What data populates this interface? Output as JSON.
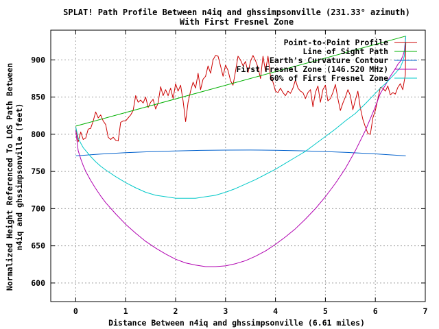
{
  "chart_data": {
    "type": "line",
    "title": "SPLAT! Path Profile Between n4iq and ghssimpsonville (231.33° azimuth)",
    "subtitle": "With First Fresnel Zone",
    "xlabel": "Distance Between n4iq and ghssimpsonville (6.61 miles)",
    "ylabel_line1": "Normalized Height Referenced To LOS Path Between",
    "ylabel_line2": "n4iq and ghssimpsonville (feet)",
    "xlim": [
      -0.5,
      7
    ],
    "ylim": [
      575,
      940
    ],
    "x_ticks": [
      0,
      1,
      2,
      3,
      4,
      5,
      6,
      7
    ],
    "y_ticks": [
      600,
      650,
      700,
      750,
      800,
      850,
      900
    ],
    "grid": true,
    "legend_position": "top-right",
    "series": [
      {
        "name": "Point-to-Point Profile",
        "color": "#cc0000",
        "x": [
          0,
          0.05,
          0.1,
          0.15,
          0.2,
          0.25,
          0.3,
          0.35,
          0.4,
          0.45,
          0.5,
          0.55,
          0.6,
          0.65,
          0.7,
          0.75,
          0.8,
          0.85,
          0.9,
          0.95,
          1.0,
          1.05,
          1.1,
          1.15,
          1.2,
          1.25,
          1.3,
          1.35,
          1.4,
          1.45,
          1.5,
          1.55,
          1.6,
          1.65,
          1.7,
          1.75,
          1.8,
          1.85,
          1.9,
          1.95,
          2.0,
          2.05,
          2.1,
          2.15,
          2.2,
          2.25,
          2.3,
          2.35,
          2.4,
          2.45,
          2.5,
          2.55,
          2.6,
          2.65,
          2.7,
          2.75,
          2.8,
          2.85,
          2.9,
          2.95,
          3.0,
          3.05,
          3.1,
          3.15,
          3.2,
          3.25,
          3.3,
          3.35,
          3.4,
          3.45,
          3.5,
          3.55,
          3.6,
          3.65,
          3.7,
          3.75,
          3.8,
          3.85,
          3.9,
          3.95,
          4.0,
          4.05,
          4.1,
          4.15,
          4.2,
          4.25,
          4.3,
          4.35,
          4.4,
          4.45,
          4.5,
          4.55,
          4.6,
          4.65,
          4.7,
          4.75,
          4.8,
          4.85,
          4.9,
          4.95,
          5.0,
          5.05,
          5.1,
          5.15,
          5.2,
          5.25,
          5.3,
          5.35,
          5.4,
          5.45,
          5.5,
          5.55,
          5.6,
          5.65,
          5.7,
          5.75,
          5.8,
          5.85,
          5.9,
          5.95,
          6.0,
          6.05,
          6.1,
          6.15,
          6.2,
          6.25,
          6.3,
          6.35,
          6.4,
          6.45,
          6.5,
          6.55,
          6.6,
          6.61
        ],
        "values": [
          810,
          790,
          803,
          793,
          795,
          807,
          808,
          818,
          830,
          822,
          826,
          818,
          813,
          796,
          793,
          796,
          792,
          791,
          816,
          818,
          818,
          822,
          826,
          832,
          852,
          843,
          846,
          842,
          850,
          836,
          843,
          847,
          834,
          842,
          864,
          852,
          860,
          852,
          862,
          848,
          868,
          858,
          866,
          845,
          817,
          843,
          858,
          870,
          862,
          882,
          860,
          874,
          878,
          892,
          882,
          900,
          906,
          905,
          892,
          878,
          893,
          886,
          872,
          866,
          885,
          905,
          900,
          892,
          898,
          883,
          898,
          906,
          899,
          890,
          875,
          905,
          885,
          905,
          878,
          870,
          858,
          856,
          862,
          856,
          852,
          858,
          855,
          862,
          873,
          862,
          858,
          856,
          848,
          856,
          860,
          837,
          856,
          865,
          843,
          860,
          866,
          845,
          848,
          856,
          867,
          848,
          832,
          842,
          850,
          860,
          852,
          833,
          846,
          858,
          835,
          820,
          810,
          801,
          800,
          822,
          832,
          847,
          863,
          862,
          858,
          865,
          853,
          856,
          854,
          863,
          868,
          860,
          880,
          924
        ]
      },
      {
        "name": "Line of Sight Path",
        "color": "#00b000",
        "x": [
          0,
          6.61
        ],
        "values": [
          811,
          932
        ]
      },
      {
        "name": "Earth's Curvature Contour",
        "color": "#0060cc",
        "x": [
          0,
          0.5,
          1.0,
          1.5,
          2.0,
          2.5,
          3.0,
          3.5,
          4.0,
          4.5,
          5.0,
          5.5,
          6.0,
          6.61
        ],
        "values": [
          771,
          773.4,
          775.2,
          776.6,
          777.6,
          778.3,
          778.7,
          778.8,
          778.5,
          777.8,
          776.8,
          775.4,
          773.6,
          771
        ]
      },
      {
        "name": "First Fresnel Zone (146.520 MHz)",
        "color": "#b000b0",
        "x": [
          0,
          0.05,
          0.1,
          0.15,
          0.2,
          0.3,
          0.4,
          0.5,
          0.6,
          0.8,
          1.0,
          1.2,
          1.4,
          1.6,
          1.8,
          2.0,
          2.2,
          2.4,
          2.6,
          2.8,
          3.0,
          3.2,
          3.4,
          3.6,
          3.8,
          4.0,
          4.2,
          4.4,
          4.6,
          4.8,
          5.0,
          5.2,
          5.4,
          5.6,
          5.8,
          6.0,
          6.1,
          6.2,
          6.3,
          6.4,
          6.45,
          6.5,
          6.55,
          6.58,
          6.61
        ],
        "values": [
          805,
          778,
          767,
          758,
          750,
          738,
          727,
          717,
          708,
          693,
          679,
          667,
          656,
          647,
          639,
          632,
          627,
          624,
          622,
          622,
          623,
          626,
          630,
          636,
          643,
          652,
          662,
          673,
          686,
          700,
          716,
          734,
          754,
          778,
          805,
          837,
          855,
          866,
          878,
          888,
          894,
          898,
          905,
          912,
          932
        ]
      },
      {
        "name": "60% of First Fresnel Zone",
        "color": "#00c8c8",
        "x": [
          0,
          0.05,
          0.1,
          0.15,
          0.2,
          0.3,
          0.4,
          0.5,
          0.6,
          0.8,
          1.0,
          1.2,
          1.4,
          1.6,
          1.8,
          2.0,
          2.2,
          2.4,
          2.6,
          2.8,
          3.0,
          3.2,
          3.4,
          3.6,
          3.8,
          4.0,
          4.2,
          4.4,
          4.6,
          4.8,
          5.0,
          5.2,
          5.4,
          5.6,
          5.8,
          6.0,
          6.1,
          6.2,
          6.3,
          6.4,
          6.45,
          6.5,
          6.55,
          6.58,
          6.61
        ],
        "values": [
          810,
          795,
          788,
          782,
          778,
          770,
          763,
          757,
          752,
          743,
          735,
          728,
          722,
          718,
          716,
          714,
          714,
          714,
          716,
          718,
          722,
          727,
          733,
          739,
          746,
          753,
          761,
          769,
          777,
          787,
          797,
          807,
          818,
          828,
          841,
          855,
          862,
          868,
          875,
          882,
          886,
          890,
          898,
          905,
          932
        ]
      }
    ]
  }
}
